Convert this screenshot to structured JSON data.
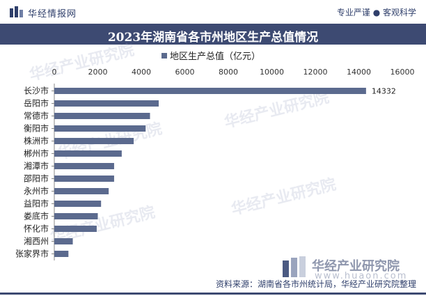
{
  "header": {
    "brand": "华经情报网",
    "tagline": "专业严谨 ● 客观科学"
  },
  "colors": {
    "bar": "#5b6a8e",
    "title_bg": "#3d4a72",
    "brand": "#2f3f6b"
  },
  "chart_data": {
    "type": "bar",
    "orientation": "horizontal",
    "title": "2023年湖南省各市州地区生产总值情况",
    "series": [
      {
        "name": "地区生产总值（亿元）",
        "values": [
          14332,
          4800,
          4400,
          4200,
          3650,
          3100,
          2750,
          2750,
          2500,
          2150,
          2000,
          1950,
          850,
          650
        ]
      }
    ],
    "categories": [
      "长沙市",
      "岳阳市",
      "常德市",
      "衡阳市",
      "株洲市",
      "郴州市",
      "湘潭市",
      "邵阳市",
      "永州市",
      "益阳市",
      "娄底市",
      "怀化市",
      "湘西州",
      "张家界市"
    ],
    "data_labels": [
      "14332"
    ],
    "xaxis_ticks": [
      "0",
      "2000",
      "4000",
      "6000",
      "8000",
      "10000",
      "12000",
      "14000",
      "16000"
    ],
    "xlim": [
      0,
      16000
    ],
    "xaxis_position": "top",
    "legend": "top-center",
    "grid": false
  },
  "watermark": {
    "text": "华经产业研究院",
    "url": "www.huaon.com"
  },
  "footer": {
    "brand": "华经产业研究院",
    "url": "www.huaon.com",
    "source": "资料来源：湖南省各市州统计局，华经产业研究院整理"
  }
}
